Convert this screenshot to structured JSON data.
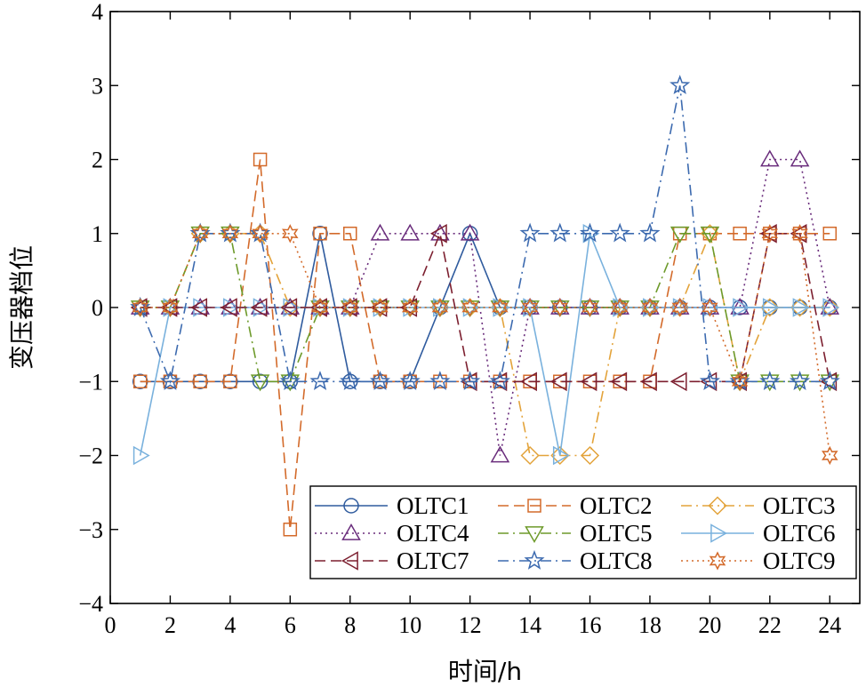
{
  "chart_data": {
    "type": "line",
    "title": "",
    "xlabel": "时间/h",
    "ylabel": "变压器档位",
    "xlim": [
      0,
      25
    ],
    "ylim": [
      -4,
      4
    ],
    "xticks": [
      0,
      2,
      4,
      6,
      8,
      10,
      12,
      14,
      16,
      18,
      20,
      22,
      24
    ],
    "yticks": [
      -4,
      -3,
      -2,
      -1,
      0,
      1,
      2,
      3,
      4
    ],
    "ytick_labels": [
      "−4",
      "−3",
      "−2",
      "−1",
      "0",
      "1",
      "2",
      "3",
      "4"
    ],
    "grid": false,
    "legend_position": "bottom-right",
    "x": [
      1,
      2,
      3,
      4,
      5,
      6,
      7,
      8,
      9,
      10,
      11,
      12,
      13,
      14,
      15,
      16,
      17,
      18,
      19,
      20,
      21,
      22,
      23,
      24
    ],
    "series": [
      {
        "name": "OLTC1",
        "color": "#2f5b9e",
        "dash": "solid",
        "marker": "circle",
        "values": [
          -1,
          -1,
          -1,
          -1,
          -1,
          -1,
          1,
          -1,
          -1,
          -1,
          0,
          1,
          0,
          0,
          0,
          0,
          0,
          0,
          0,
          0,
          0,
          0,
          0,
          0
        ]
      },
      {
        "name": "OLTC2",
        "color": "#d36a2a",
        "dash": "dashed",
        "marker": "square",
        "values": [
          -1,
          -1,
          -1,
          -1,
          2,
          -3,
          1,
          1,
          -1,
          -1,
          -1,
          -1,
          -1,
          -1,
          -1,
          -1,
          -1,
          -1,
          1,
          1,
          1,
          1,
          1,
          1
        ]
      },
      {
        "name": "OLTC3",
        "color": "#e3a33a",
        "dash": "dashdot",
        "marker": "diamond",
        "values": [
          0,
          0,
          1,
          1,
          1,
          0,
          0,
          0,
          0,
          0,
          0,
          0,
          0,
          -2,
          -2,
          -2,
          0,
          0,
          0,
          1,
          -1,
          0,
          0,
          0
        ]
      },
      {
        "name": "OLTC4",
        "color": "#6a2d7c",
        "dash": "dotted",
        "marker": "triangle-up",
        "values": [
          0,
          0,
          0,
          0,
          0,
          0,
          0,
          0,
          1,
          1,
          1,
          1,
          -2,
          0,
          0,
          0,
          0,
          0,
          0,
          0,
          0,
          2,
          2,
          0
        ]
      },
      {
        "name": "OLTC5",
        "color": "#6d9a2a",
        "dash": "dashdot",
        "marker": "triangle-down",
        "values": [
          0,
          0,
          1,
          1,
          -1,
          -1,
          0,
          0,
          0,
          0,
          0,
          0,
          0,
          0,
          0,
          0,
          0,
          0,
          1,
          1,
          -1,
          -1,
          -1,
          -1
        ]
      },
      {
        "name": "OLTC6",
        "color": "#79b1dd",
        "dash": "solid",
        "marker": "triangle-right",
        "values": [
          -2,
          0,
          0,
          0,
          0,
          0,
          0,
          0,
          0,
          0,
          0,
          0,
          0,
          0,
          -2,
          1,
          0,
          0,
          0,
          0,
          0,
          0,
          0,
          0
        ]
      },
      {
        "name": "OLTC7",
        "color": "#7c1f2f",
        "dash": "dashed",
        "marker": "triangle-left",
        "values": [
          0,
          0,
          0,
          0,
          0,
          0,
          0,
          0,
          0,
          0,
          1,
          -1,
          -1,
          -1,
          -1,
          -1,
          -1,
          -1,
          -1,
          -1,
          -1,
          1,
          1,
          -1
        ]
      },
      {
        "name": "OLTC8",
        "color": "#3c6aaf",
        "dash": "dashdot",
        "marker": "star",
        "values": [
          0,
          -1,
          1,
          1,
          1,
          -1,
          -1,
          -1,
          -1,
          -1,
          -1,
          -1,
          -1,
          1,
          1,
          1,
          1,
          1,
          3,
          -1,
          -1,
          -1,
          -1,
          -1
        ]
      },
      {
        "name": "OLTC9",
        "color": "#d36a2a",
        "dash": "dotted",
        "marker": "hexstar",
        "values": [
          0,
          0,
          1,
          1,
          1,
          1,
          0,
          0,
          0,
          0,
          0,
          0,
          0,
          0,
          0,
          0,
          0,
          0,
          0,
          0,
          -1,
          1,
          1,
          -2
        ]
      }
    ]
  }
}
